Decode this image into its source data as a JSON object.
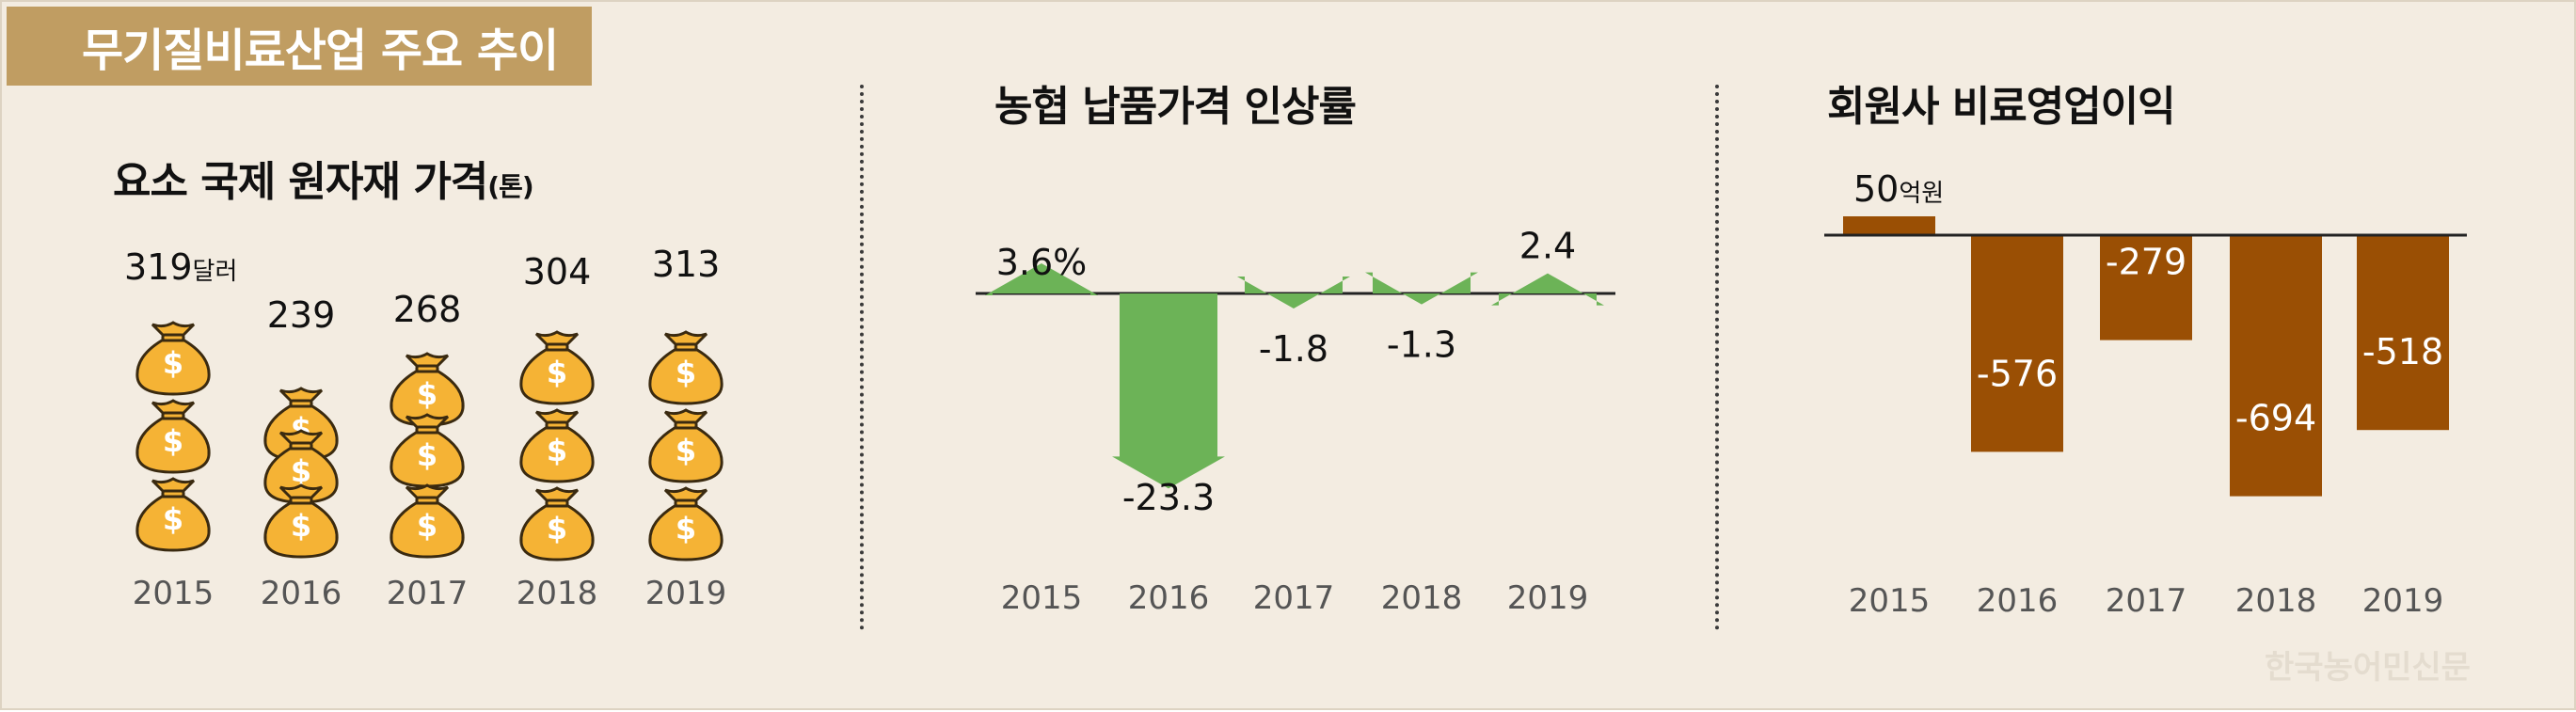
{
  "title": "무기질비료산업 주요 추이",
  "watermark": "한국농어민신문",
  "colors": {
    "accent": "#c09d62",
    "bag": "#f5b335",
    "green": "#6cb357",
    "brown": "#9a4f04",
    "background": "#f3ece1"
  },
  "chart_data": [
    {
      "type": "pictograph",
      "title": "요소 국제 원자재 가격",
      "unit_label": "(톤)",
      "categories": [
        "2015",
        "2016",
        "2017",
        "2018",
        "2019"
      ],
      "values": [
        319,
        239,
        268,
        304,
        313
      ],
      "value_labels": [
        "319",
        "239",
        "268",
        "304",
        "313"
      ],
      "value_suffix": "달러",
      "icon": "money-bag-icon",
      "icon_counts": [
        3,
        3,
        3,
        3,
        3
      ]
    },
    {
      "type": "bar",
      "title": "농협 납품가격 인상률",
      "categories": [
        "2015",
        "2016",
        "2017",
        "2018",
        "2019"
      ],
      "values": [
        3.6,
        -23.3,
        -1.8,
        -1.3,
        2.4
      ],
      "value_labels": [
        "3.6%",
        "-23.3",
        "-1.8",
        "-1.3",
        "2.4"
      ],
      "mark": "arrow"
    },
    {
      "type": "bar",
      "title": "회원사 비료영업이익",
      "categories": [
        "2015",
        "2016",
        "2017",
        "2018",
        "2019"
      ],
      "values": [
        50,
        -576,
        -279,
        -694,
        -518
      ],
      "value_labels": [
        "50",
        "-576",
        "-279",
        "-694",
        "-518"
      ],
      "first_value_suffix": "억원"
    }
  ]
}
